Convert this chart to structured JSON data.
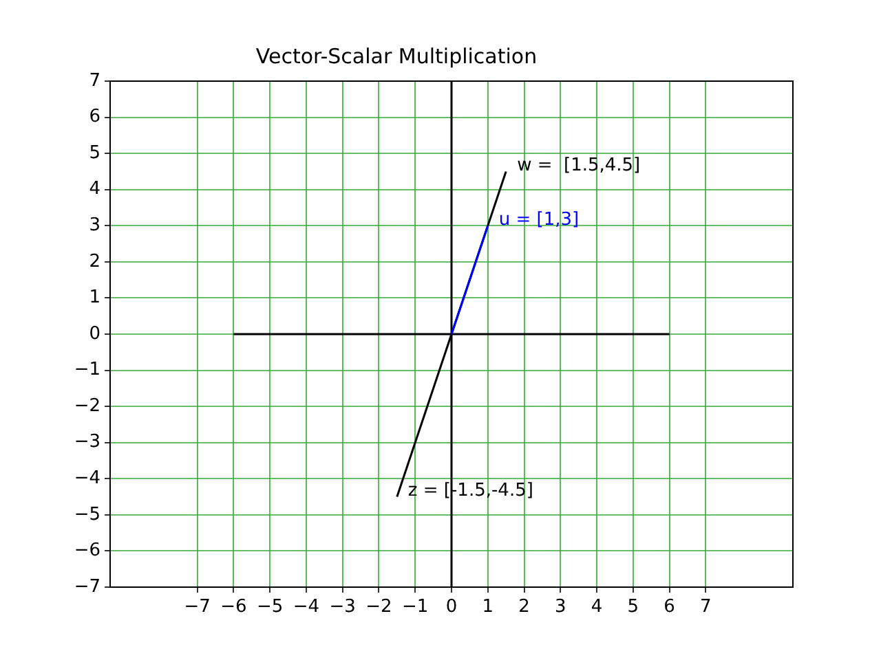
{
  "chart_data": {
    "type": "line",
    "title": "Vector-Scalar Multiplication",
    "series": [
      {
        "color": "#000000",
        "x": [
          -6,
          6
        ],
        "values": [
          0,
          0
        ]
      },
      {
        "color": "#000000",
        "x": [
          0,
          0
        ],
        "values": [
          -7,
          7
        ]
      },
      {
        "color": "#000000",
        "x": [
          -1.5,
          1.5
        ],
        "values": [
          -4.5,
          4.5
        ]
      },
      {
        "color": "#0000ff",
        "x": [
          0,
          1
        ],
        "values": [
          0,
          3
        ]
      }
    ],
    "xlim": [
      -9.4,
      9.4
    ],
    "xticks": [
      -7,
      -6,
      -5,
      -4,
      -3,
      -2,
      -1,
      0,
      1,
      2,
      3,
      4,
      5,
      6,
      7
    ],
    "ylim": [
      -7,
      7
    ],
    "yticks": [
      -7,
      -6,
      -5,
      -4,
      -3,
      -2,
      -1,
      0,
      1,
      2,
      3,
      4,
      5,
      6,
      7
    ],
    "grid": true,
    "legend": false,
    "marker": "none",
    "line_style": "solid",
    "annotations": [
      {
        "text": "w =  [1.5,4.5]",
        "x": 1.5,
        "y": 4.5
      },
      {
        "text": "u = [1,3]",
        "x": 1,
        "y": 3
      },
      {
        "text": "z = [-1.5,-4.5]",
        "x": -1.5,
        "y": -4.5
      }
    ]
  }
}
